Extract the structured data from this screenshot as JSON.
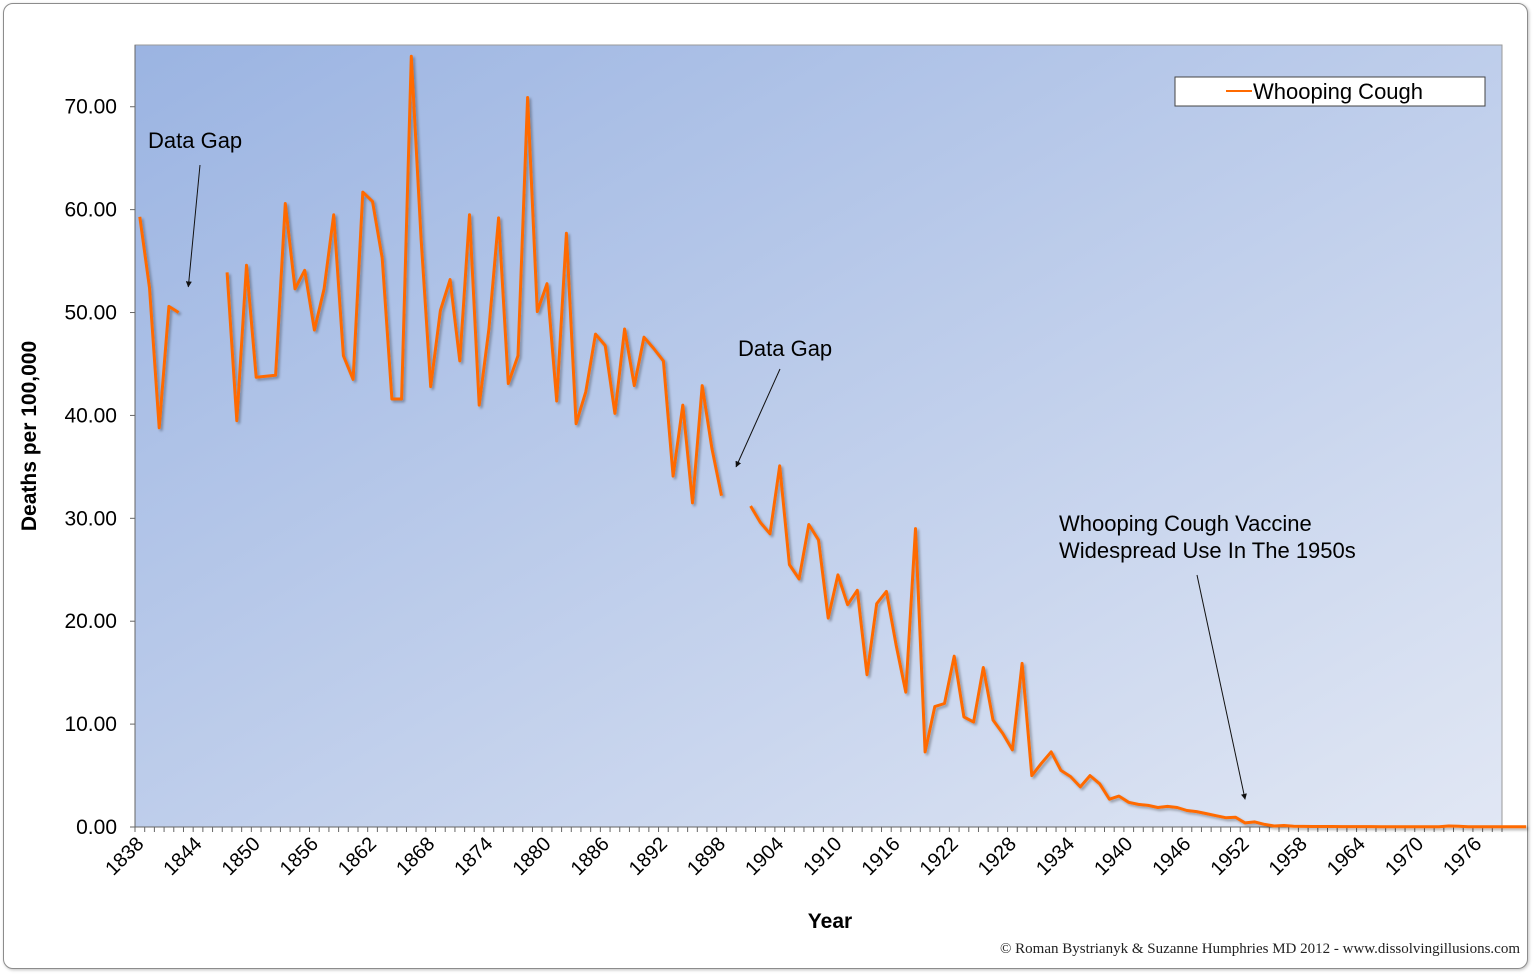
{
  "chart_data": {
    "type": "line",
    "title": "",
    "xlabel": "Year",
    "ylabel": "Deaths per 100,000",
    "ylim": [
      0,
      76
    ],
    "yticks": [
      "0.00",
      "10.00",
      "20.00",
      "30.00",
      "40.00",
      "50.00",
      "60.00",
      "70.00"
    ],
    "xtick_labels": [
      "1838",
      "1844",
      "1850",
      "1856",
      "1862",
      "1868",
      "1874",
      "1880",
      "1886",
      "1892",
      "1898",
      "1904",
      "1910",
      "1916",
      "1922",
      "1928",
      "1934",
      "1940",
      "1946",
      "1952",
      "1958",
      "1964",
      "1970",
      "1976"
    ],
    "x_start": 1838,
    "x_end": 1978,
    "grid": false,
    "legend_position": "top-right",
    "series": [
      {
        "name": "Whooping Cough",
        "color": "#ff6a00",
        "x_start": 1838,
        "values": [
          59.3,
          52.4,
          38.8,
          50.6,
          50.0,
          null,
          null,
          null,
          null,
          53.9,
          39.5,
          54.6,
          43.7,
          43.8,
          43.9,
          60.6,
          52.3,
          54.1,
          48.3,
          52.3,
          59.5,
          45.8,
          43.5,
          61.7,
          60.8,
          55.3,
          41.6,
          41.6,
          74.9,
          57.3,
          42.8,
          50.2,
          53.2,
          45.3,
          59.5,
          41.0,
          48.4,
          59.2,
          43.1,
          45.8,
          70.9,
          50.1,
          52.8,
          41.4,
          57.7,
          39.2,
          42.3,
          47.9,
          46.8,
          40.2,
          48.4,
          42.9,
          47.6,
          46.5,
          45.3,
          34.1,
          41.0,
          31.5,
          42.9,
          36.8,
          32.2,
          null,
          null,
          31.2,
          29.6,
          28.5,
          35.1,
          25.5,
          24.1,
          29.4,
          27.9,
          20.3,
          24.5,
          21.6,
          23.0,
          14.8,
          21.7,
          22.9,
          17.7,
          13.1,
          29.0,
          7.3,
          11.7,
          12.0,
          16.6,
          10.7,
          10.2,
          15.5,
          10.4,
          9.1,
          7.5,
          15.9,
          5.0,
          6.2,
          7.3,
          5.5,
          4.9,
          3.9,
          5.0,
          4.2,
          2.7,
          3.0,
          2.4,
          2.2,
          2.1,
          1.9,
          2.0,
          1.9,
          1.6,
          1.5,
          1.3,
          1.1,
          0.9,
          0.95,
          0.4,
          0.5,
          0.25,
          0.1,
          0.15,
          0.08,
          0.06,
          0.05,
          0.05,
          0.05,
          0.04,
          0.04,
          0.04,
          0.04,
          0.03,
          0.03,
          0.03,
          0.03,
          0.03,
          0.02,
          0.02,
          0.1,
          0.08,
          0.02,
          0.02,
          0.02,
          0.02,
          0.02,
          0.02,
          0.02
        ]
      }
    ],
    "annotations": [
      {
        "text": "Data Gap",
        "target_year": 1843,
        "target_value": 52.5
      },
      {
        "text": "Data Gap",
        "target_year": 1899.5,
        "target_value": 35.0
      },
      {
        "lines": [
          "Whooping Cough Vaccine",
          "Widespread Use In The 1950s"
        ],
        "target_year": 1952,
        "target_value": 2.7
      }
    ]
  },
  "credit": "© Roman Bystrianyk & Suzanne Humphries MD 2012 - www.dissolvingillusions.com"
}
